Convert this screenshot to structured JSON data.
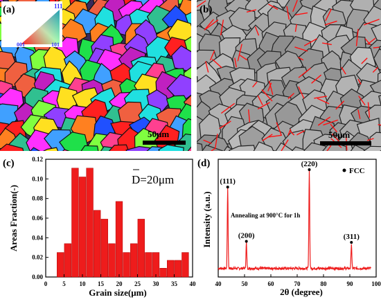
{
  "panels": {
    "a": {
      "label": "(a)",
      "scalebar": "50μm",
      "ipf_labels": {
        "top": "111",
        "left": "001",
        "right": "101"
      }
    },
    "b": {
      "label": "(b)",
      "scalebar": "50μm"
    }
  },
  "chart_data": [
    {
      "panel_label": "(c)",
      "type": "bar",
      "xlabel": "Grain size(μm)",
      "ylabel": "Areas Fraction(-)",
      "annotation": "D=20μm",
      "xlim": [
        0,
        40
      ],
      "ylim": [
        0,
        0.12
      ],
      "xticks": [
        "0",
        "5",
        "10",
        "15",
        "20",
        "25",
        "30",
        "35",
        "40"
      ],
      "yticks": [
        "0.00",
        "0.02",
        "0.04",
        "0.06",
        "0.08",
        "0.10",
        "0.12"
      ],
      "bin_width": 2,
      "x": [
        4,
        6,
        8,
        10,
        12,
        14,
        16,
        18,
        20,
        22,
        24,
        26,
        28,
        30,
        32,
        34,
        36,
        38
      ],
      "values": [
        0.025,
        0.034,
        0.111,
        0.102,
        0.111,
        0.068,
        0.059,
        0.034,
        0.077,
        0.025,
        0.034,
        0.059,
        0.025,
        0.025,
        0.009,
        0.017,
        0.017,
        0.025
      ],
      "color": "#ee1c1c"
    },
    {
      "panel_label": "(d)",
      "type": "line",
      "xlabel": "2θ (degree)",
      "ylabel": "Intensity (a.u.)",
      "annotation": "Annealing at 900°C for 1h",
      "legend": "FCC",
      "xlim": [
        40,
        100
      ],
      "xticks": [
        "40",
        "50",
        "60",
        "70",
        "80",
        "90",
        "100"
      ],
      "peaks": [
        {
          "label": "(111)",
          "x": 43.6,
          "intensity": 0.78
        },
        {
          "label": "(200)",
          "x": 50.7,
          "intensity": 0.25
        },
        {
          "label": "(220)",
          "x": 74.6,
          "intensity": 0.95
        },
        {
          "label": "(311)",
          "x": 90.6,
          "intensity": 0.24
        }
      ],
      "color": "#ee1c1c"
    }
  ]
}
